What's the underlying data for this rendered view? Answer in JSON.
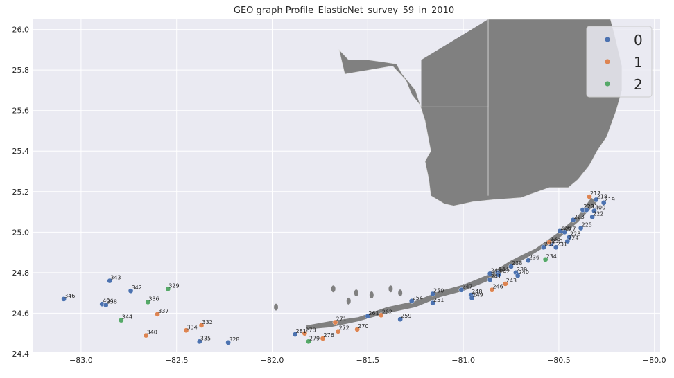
{
  "chart_data": {
    "type": "scatter",
    "title": "GEO graph Profile_ElasticNet_survey_59_in_2010",
    "xlabel": "",
    "ylabel": "",
    "xlim": [
      -83.25,
      -79.97
    ],
    "ylim": [
      24.41,
      26.05
    ],
    "xticks": [
      -83.0,
      -82.5,
      -82.0,
      -81.5,
      -81.0,
      -80.5,
      -80.0
    ],
    "xtick_labels": [
      "−83.0",
      "−82.5",
      "−82.0",
      "−81.5",
      "−81.0",
      "−80.5",
      "−80.0"
    ],
    "yticks": [
      24.4,
      24.6,
      24.8,
      25.0,
      25.2,
      25.4,
      25.6,
      25.8,
      26.0
    ],
    "ytick_labels": [
      "24.4",
      "24.6",
      "24.8",
      "25.0",
      "25.2",
      "25.4",
      "25.6",
      "25.8",
      "26.0"
    ],
    "grid": true,
    "background": "#eaeaf2",
    "land_color": "#808080",
    "legend": {
      "placement": "top-right",
      "entries": [
        {
          "label": "0",
          "color": "#4c72b0"
        },
        {
          "label": "1",
          "color": "#dd8452"
        },
        {
          "label": "2",
          "color": "#55a868"
        }
      ]
    },
    "series": [
      {
        "name": "0",
        "color": "#4c72b0",
        "points": [
          {
            "label": "346",
            "x": -83.09,
            "y": 24.67
          },
          {
            "label": "343",
            "x": -82.85,
            "y": 24.76
          },
          {
            "label": "342",
            "x": -82.74,
            "y": 24.71
          },
          {
            "label": "404",
            "x": -82.89,
            "y": 24.645
          },
          {
            "label": "338",
            "x": -82.87,
            "y": 24.64
          },
          {
            "label": "335",
            "x": -82.38,
            "y": 24.46
          },
          {
            "label": "328",
            "x": -82.23,
            "y": 24.455
          },
          {
            "label": "281",
            "x": -81.88,
            "y": 24.495
          },
          {
            "label": "261",
            "x": -81.5,
            "y": 24.585
          },
          {
            "label": "259",
            "x": -81.33,
            "y": 24.57
          },
          {
            "label": "254",
            "x": -81.27,
            "y": 24.66
          },
          {
            "label": "251",
            "x": -81.16,
            "y": 24.65
          },
          {
            "label": "250",
            "x": -81.16,
            "y": 24.695
          },
          {
            "label": "247",
            "x": -81.01,
            "y": 24.715
          },
          {
            "label": "248",
            "x": -80.96,
            "y": 24.69
          },
          {
            "label": "249",
            "x": -80.955,
            "y": 24.675
          },
          {
            "label": "245",
            "x": -80.86,
            "y": 24.795
          },
          {
            "label": "241",
            "x": -80.86,
            "y": 24.765
          },
          {
            "label": "244",
            "x": -80.82,
            "y": 24.8
          },
          {
            "label": "242",
            "x": -80.815,
            "y": 24.79
          },
          {
            "label": "238",
            "x": -80.75,
            "y": 24.83
          },
          {
            "label": "239",
            "x": -80.725,
            "y": 24.8
          },
          {
            "label": "240",
            "x": -80.715,
            "y": 24.785
          },
          {
            "label": "236",
            "x": -80.66,
            "y": 24.86
          },
          {
            "label": "232",
            "x": -80.58,
            "y": 24.925
          },
          {
            "label": "230",
            "x": -80.54,
            "y": 24.94
          },
          {
            "label": "231",
            "x": -80.515,
            "y": 24.925
          },
          {
            "label": "224",
            "x": -80.455,
            "y": 24.955
          },
          {
            "label": "226",
            "x": -80.495,
            "y": 25.005
          },
          {
            "label": "227",
            "x": -80.47,
            "y": 25.0
          },
          {
            "label": "228",
            "x": -80.445,
            "y": 24.975
          },
          {
            "label": "225",
            "x": -80.385,
            "y": 25.02
          },
          {
            "label": "223",
            "x": -80.425,
            "y": 25.06
          },
          {
            "label": "222",
            "x": -80.325,
            "y": 25.075
          },
          {
            "label": "220",
            "x": -80.375,
            "y": 25.11
          },
          {
            "label": "221",
            "x": -80.355,
            "y": 25.11
          },
          {
            "label": "400",
            "x": -80.315,
            "y": 25.105
          },
          {
            "label": "218",
            "x": -80.305,
            "y": 25.16
          },
          {
            "label": "219",
            "x": -80.265,
            "y": 25.145
          }
        ]
      },
      {
        "name": "1",
        "color": "#dd8452",
        "points": [
          {
            "label": "337",
            "x": -82.6,
            "y": 24.595
          },
          {
            "label": "340",
            "x": -82.66,
            "y": 24.49
          },
          {
            "label": "334",
            "x": -82.45,
            "y": 24.515
          },
          {
            "label": "332",
            "x": -82.37,
            "y": 24.54
          },
          {
            "label": "278",
            "x": -81.83,
            "y": 24.5
          },
          {
            "label": "276",
            "x": -81.735,
            "y": 24.475
          },
          {
            "label": "272",
            "x": -81.655,
            "y": 24.51
          },
          {
            "label": "271",
            "x": -81.67,
            "y": 24.555
          },
          {
            "label": "270",
            "x": -81.555,
            "y": 24.52
          },
          {
            "label": "262",
            "x": -81.43,
            "y": 24.59
          },
          {
            "label": "246",
            "x": -80.85,
            "y": 24.715
          },
          {
            "label": "243",
            "x": -80.78,
            "y": 24.745
          },
          {
            "label": "233",
            "x": -80.55,
            "y": 24.95
          },
          {
            "label": "217",
            "x": -80.34,
            "y": 25.175
          }
        ]
      },
      {
        "name": "2",
        "color": "#55a868",
        "points": [
          {
            "label": "329",
            "x": -82.545,
            "y": 24.72
          },
          {
            "label": "336",
            "x": -82.65,
            "y": 24.655
          },
          {
            "label": "344",
            "x": -82.79,
            "y": 24.565
          },
          {
            "label": "279",
            "x": -81.81,
            "y": 24.46
          },
          {
            "label": "234",
            "x": -80.57,
            "y": 24.865
          }
        ]
      }
    ]
  }
}
